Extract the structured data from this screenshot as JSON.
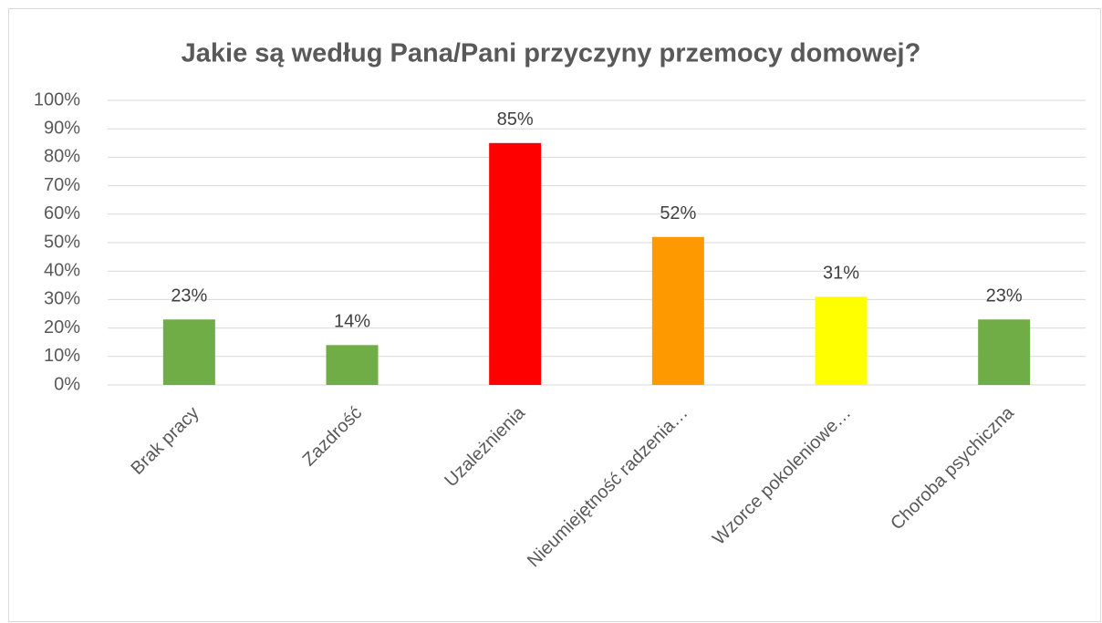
{
  "chart_data": {
    "type": "bar",
    "title": "Jakie są według Pana/Pani przyczyny przemocy domowej?",
    "categories": [
      "Brak pracy",
      "Zazdrość",
      "Uzależnienia",
      "Nieumiejętność radzenia…",
      "Wzorce pokoleniowe…",
      "Choroba psychiczna"
    ],
    "values": [
      23,
      14,
      85,
      52,
      31,
      23
    ],
    "value_labels": [
      "23%",
      "14%",
      "85%",
      "52%",
      "31%",
      "23%"
    ],
    "colors": [
      "#70ad47",
      "#70ad47",
      "#ff0000",
      "#ff9900",
      "#ffff00",
      "#70ad47"
    ],
    "ylim": [
      0,
      100
    ],
    "yticks": [
      {
        "value": 0,
        "label": "0%"
      },
      {
        "value": 10,
        "label": "10%"
      },
      {
        "value": 20,
        "label": "20%"
      },
      {
        "value": 30,
        "label": "30%"
      },
      {
        "value": 40,
        "label": "40%"
      },
      {
        "value": 50,
        "label": "50%"
      },
      {
        "value": 60,
        "label": "60%"
      },
      {
        "value": 70,
        "label": "70%"
      },
      {
        "value": 80,
        "label": "80%"
      },
      {
        "value": 90,
        "label": "90%"
      },
      {
        "value": 100,
        "label": "100%"
      }
    ],
    "grid": true
  }
}
